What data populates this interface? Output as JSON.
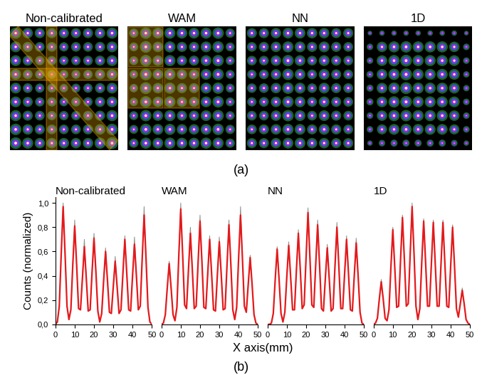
{
  "panel_labels": [
    "(a)",
    "(b)"
  ],
  "xlabel": "X axis(mm)",
  "ylabel": "Counts (normalized)",
  "images": [
    {
      "title": "Non-calibrated",
      "spots": [
        [
          0.85,
          0.75,
          0.7,
          0.7,
          0.7,
          0.7,
          0.7,
          0.75,
          0.85
        ],
        [
          0.8,
          0.7,
          0.65,
          0.65,
          0.6,
          0.65,
          0.65,
          0.7,
          0.8
        ],
        [
          0.8,
          0.7,
          0.6,
          0.6,
          0.6,
          0.6,
          0.65,
          0.7,
          0.8
        ],
        [
          0.8,
          0.65,
          0.6,
          0.55,
          0.55,
          0.55,
          0.6,
          0.7,
          0.8
        ],
        [
          0.8,
          0.65,
          0.6,
          0.55,
          0.5,
          0.55,
          0.6,
          0.7,
          0.8
        ],
        [
          0.8,
          0.7,
          0.6,
          0.6,
          0.55,
          0.6,
          0.6,
          0.7,
          0.8
        ],
        [
          0.85,
          0.7,
          0.65,
          0.6,
          0.6,
          0.6,
          0.65,
          0.7,
          0.85
        ],
        [
          0.9,
          0.75,
          0.7,
          0.65,
          0.65,
          0.65,
          0.7,
          0.75,
          0.9
        ],
        [
          0.95,
          0.85,
          0.75,
          0.75,
          0.75,
          0.75,
          0.75,
          0.85,
          0.95
        ]
      ]
    },
    {
      "title": "WAM",
      "spots": [
        [
          0.6,
          0.9,
          0.8,
          0.85,
          0.8,
          0.8,
          0.85,
          0.9,
          0.6
        ],
        [
          0.55,
          0.95,
          0.75,
          0.85,
          0.7,
          0.7,
          0.8,
          0.9,
          0.55
        ],
        [
          0.55,
          0.9,
          0.75,
          0.85,
          0.7,
          0.7,
          0.8,
          0.9,
          0.55
        ],
        [
          0.5,
          0.95,
          0.75,
          0.85,
          0.7,
          0.7,
          0.8,
          0.9,
          0.55
        ],
        [
          0.5,
          0.95,
          0.75,
          0.85,
          0.7,
          0.68,
          0.82,
          0.9,
          0.55
        ],
        [
          0.5,
          0.9,
          0.75,
          0.85,
          0.7,
          0.7,
          0.8,
          0.9,
          0.55
        ],
        [
          0.55,
          0.9,
          0.75,
          0.85,
          0.7,
          0.7,
          0.8,
          0.9,
          0.55
        ],
        [
          0.55,
          0.9,
          0.8,
          0.85,
          0.75,
          0.75,
          0.8,
          0.9,
          0.6
        ],
        [
          0.6,
          0.85,
          0.8,
          0.85,
          0.8,
          0.8,
          0.85,
          0.85,
          0.6
        ]
      ]
    },
    {
      "title": "NN",
      "spots": [
        [
          0.7,
          0.7,
          0.75,
          0.8,
          0.8,
          0.75,
          0.75,
          0.7,
          0.7
        ],
        [
          0.65,
          0.7,
          0.75,
          0.85,
          0.8,
          0.7,
          0.8,
          0.7,
          0.65
        ],
        [
          0.65,
          0.65,
          0.75,
          0.9,
          0.8,
          0.65,
          0.8,
          0.7,
          0.65
        ],
        [
          0.6,
          0.65,
          0.75,
          0.9,
          0.8,
          0.65,
          0.8,
          0.7,
          0.65
        ],
        [
          0.62,
          0.65,
          0.75,
          0.92,
          0.82,
          0.63,
          0.8,
          0.7,
          0.67
        ],
        [
          0.6,
          0.65,
          0.75,
          0.9,
          0.8,
          0.65,
          0.8,
          0.7,
          0.65
        ],
        [
          0.65,
          0.65,
          0.75,
          0.9,
          0.8,
          0.65,
          0.8,
          0.7,
          0.65
        ],
        [
          0.65,
          0.7,
          0.75,
          0.85,
          0.8,
          0.7,
          0.8,
          0.7,
          0.65
        ],
        [
          0.7,
          0.7,
          0.75,
          0.8,
          0.8,
          0.75,
          0.75,
          0.7,
          0.7
        ]
      ]
    },
    {
      "title": "1D",
      "spots": [
        [
          0.15,
          0.2,
          0.2,
          0.2,
          0.2,
          0.2,
          0.2,
          0.2,
          0.15
        ],
        [
          0.3,
          0.75,
          0.85,
          0.9,
          0.85,
          0.85,
          0.85,
          0.75,
          0.3
        ],
        [
          0.3,
          0.78,
          0.88,
          0.95,
          0.85,
          0.84,
          0.84,
          0.8,
          0.3
        ],
        [
          0.35,
          0.78,
          0.88,
          0.97,
          0.85,
          0.84,
          0.84,
          0.8,
          0.28
        ],
        [
          0.35,
          0.78,
          0.88,
          0.97,
          0.85,
          0.84,
          0.84,
          0.8,
          0.28
        ],
        [
          0.35,
          0.78,
          0.88,
          0.95,
          0.85,
          0.84,
          0.84,
          0.8,
          0.3
        ],
        [
          0.3,
          0.75,
          0.85,
          0.9,
          0.85,
          0.85,
          0.85,
          0.75,
          0.3
        ],
        [
          0.3,
          0.7,
          0.8,
          0.85,
          0.8,
          0.8,
          0.8,
          0.7,
          0.3
        ],
        [
          0.2,
          0.3,
          0.35,
          0.35,
          0.35,
          0.35,
          0.35,
          0.3,
          0.2
        ]
      ]
    }
  ],
  "chart_data": [
    {
      "type": "line",
      "title": "Non-calibrated",
      "tick_labels": true,
      "x": [
        0,
        1,
        2,
        3,
        4,
        5,
        6,
        7,
        8,
        9,
        10,
        11,
        12,
        13,
        14,
        15,
        16,
        17,
        18,
        19,
        20,
        21,
        22,
        23,
        24,
        25,
        26,
        27,
        28,
        29,
        30,
        31,
        32,
        33,
        34,
        35,
        36,
        37,
        38,
        39,
        40,
        41,
        42,
        43,
        44,
        45,
        46,
        47,
        48,
        49,
        50
      ],
      "xlim": [
        0,
        50
      ],
      "xticks": [
        0,
        10,
        20,
        30,
        40,
        50
      ],
      "ylim": [
        0,
        1.05
      ],
      "yticks": [
        {
          "value": 0.0,
          "label": "0,0"
        },
        {
          "value": 0.2,
          "label": "0,2"
        },
        {
          "value": 0.4,
          "label": "0,4"
        },
        {
          "value": 0.6,
          "label": "0,6"
        },
        {
          "value": 0.8,
          "label": "0,8"
        },
        {
          "value": 1.0,
          "label": "1,0"
        }
      ],
      "series": [
        {
          "color": "#8c8c8c",
          "values": [
            0,
            0.02,
            0.15,
            0.58,
            1.0,
            0.58,
            0.15,
            0.04,
            0.12,
            0.49,
            0.86,
            0.49,
            0.13,
            0.12,
            0.38,
            0.7,
            0.38,
            0.11,
            0.12,
            0.43,
            0.75,
            0.43,
            0.11,
            0.02,
            0.09,
            0.36,
            0.63,
            0.36,
            0.1,
            0.09,
            0.31,
            0.56,
            0.31,
            0.09,
            0.12,
            0.42,
            0.73,
            0.42,
            0.12,
            0.11,
            0.4,
            0.72,
            0.4,
            0.12,
            0.15,
            0.54,
            0.97,
            0.54,
            0.14,
            0.02,
            0
          ]
        },
        {
          "color": "#e41a1c",
          "values": [
            0,
            0.02,
            0.15,
            0.58,
            0.97,
            0.58,
            0.15,
            0.04,
            0.12,
            0.49,
            0.81,
            0.49,
            0.13,
            0.12,
            0.38,
            0.64,
            0.38,
            0.11,
            0.12,
            0.43,
            0.71,
            0.43,
            0.11,
            0.02,
            0.09,
            0.36,
            0.6,
            0.36,
            0.1,
            0.09,
            0.31,
            0.52,
            0.31,
            0.09,
            0.12,
            0.42,
            0.7,
            0.42,
            0.12,
            0.11,
            0.4,
            0.66,
            0.4,
            0.12,
            0.15,
            0.54,
            0.9,
            0.54,
            0.14,
            0.02,
            0
          ]
        }
      ]
    },
    {
      "type": "line",
      "title": "WAM",
      "tick_labels": "x",
      "x": [
        0,
        1,
        2,
        3,
        4,
        5,
        6,
        7,
        8,
        9,
        10,
        11,
        12,
        13,
        14,
        15,
        16,
        17,
        18,
        19,
        20,
        21,
        22,
        23,
        24,
        25,
        26,
        27,
        28,
        29,
        30,
        31,
        32,
        33,
        34,
        35,
        36,
        37,
        38,
        39,
        40,
        41,
        42,
        43,
        44,
        45,
        46,
        47,
        48,
        49,
        50
      ],
      "xlim": [
        0,
        50
      ],
      "xticks": [
        0,
        10,
        20,
        30,
        40,
        50
      ],
      "ylim": [
        0,
        1.05
      ],
      "series": [
        {
          "color": "#8c8c8c",
          "values": [
            0,
            0.01,
            0.08,
            0.3,
            0.52,
            0.3,
            0.08,
            0.03,
            0.14,
            0.57,
            1.0,
            0.57,
            0.16,
            0.13,
            0.45,
            0.8,
            0.45,
            0.13,
            0.15,
            0.51,
            0.9,
            0.51,
            0.14,
            0.13,
            0.42,
            0.73,
            0.42,
            0.12,
            0.11,
            0.41,
            0.72,
            0.41,
            0.12,
            0.13,
            0.49,
            0.86,
            0.49,
            0.12,
            0.04,
            0.14,
            0.54,
            0.97,
            0.54,
            0.15,
            0.1,
            0.33,
            0.57,
            0.33,
            0.08,
            0.01,
            0
          ]
        },
        {
          "color": "#e41a1c",
          "values": [
            0,
            0.01,
            0.08,
            0.3,
            0.5,
            0.3,
            0.08,
            0.03,
            0.14,
            0.57,
            0.95,
            0.57,
            0.16,
            0.13,
            0.45,
            0.75,
            0.45,
            0.13,
            0.15,
            0.51,
            0.85,
            0.51,
            0.14,
            0.13,
            0.42,
            0.7,
            0.42,
            0.12,
            0.11,
            0.41,
            0.68,
            0.41,
            0.12,
            0.13,
            0.49,
            0.82,
            0.49,
            0.12,
            0.04,
            0.14,
            0.54,
            0.9,
            0.54,
            0.15,
            0.1,
            0.33,
            0.55,
            0.33,
            0.08,
            0.01,
            0
          ]
        }
      ]
    },
    {
      "type": "line",
      "title": "NN",
      "tick_labels": "x",
      "x": [
        0,
        1,
        2,
        3,
        4,
        5,
        6,
        7,
        8,
        9,
        10,
        11,
        12,
        13,
        14,
        15,
        16,
        17,
        18,
        19,
        20,
        21,
        22,
        23,
        24,
        25,
        26,
        27,
        28,
        29,
        30,
        31,
        32,
        33,
        34,
        35,
        36,
        37,
        38,
        39,
        40,
        41,
        42,
        43,
        44,
        45,
        46,
        47,
        48,
        49,
        50
      ],
      "xlim": [
        0,
        50
      ],
      "xticks": [
        0,
        10,
        20,
        30,
        40,
        50
      ],
      "ylim": [
        0,
        1.05
      ],
      "series": [
        {
          "color": "#8c8c8c",
          "values": [
            0,
            0,
            0.01,
            0.09,
            0.37,
            0.64,
            0.37,
            0.09,
            0.02,
            0.1,
            0.39,
            0.68,
            0.39,
            0.12,
            0.12,
            0.45,
            0.78,
            0.45,
            0.13,
            0.16,
            0.55,
            0.96,
            0.55,
            0.16,
            0.14,
            0.49,
            0.86,
            0.49,
            0.13,
            0.11,
            0.38,
            0.66,
            0.38,
            0.11,
            0.13,
            0.48,
            0.84,
            0.48,
            0.13,
            0.13,
            0.42,
            0.73,
            0.42,
            0.12,
            0.11,
            0.4,
            0.71,
            0.4,
            0.1,
            0.01,
            0
          ]
        },
        {
          "color": "#e41a1c",
          "values": [
            0,
            0,
            0.01,
            0.09,
            0.37,
            0.62,
            0.37,
            0.09,
            0.02,
            0.1,
            0.39,
            0.65,
            0.39,
            0.12,
            0.12,
            0.45,
            0.75,
            0.45,
            0.13,
            0.16,
            0.55,
            0.92,
            0.55,
            0.16,
            0.14,
            0.49,
            0.82,
            0.49,
            0.13,
            0.11,
            0.38,
            0.63,
            0.38,
            0.11,
            0.13,
            0.48,
            0.8,
            0.48,
            0.13,
            0.13,
            0.42,
            0.7,
            0.42,
            0.12,
            0.11,
            0.4,
            0.67,
            0.4,
            0.1,
            0.01,
            0
          ]
        }
      ]
    },
    {
      "type": "line",
      "title": "1D",
      "tick_labels": "x",
      "x": [
        0,
        1,
        2,
        3,
        4,
        5,
        6,
        7,
        8,
        9,
        10,
        11,
        12,
        13,
        14,
        15,
        16,
        17,
        18,
        19,
        20,
        21,
        22,
        23,
        24,
        25,
        26,
        27,
        28,
        29,
        30,
        31,
        32,
        33,
        34,
        35,
        36,
        37,
        38,
        39,
        40,
        41,
        42,
        43,
        44,
        45,
        46,
        47,
        48,
        49,
        50
      ],
      "xlim": [
        0,
        50
      ],
      "xticks": [
        0,
        10,
        20,
        30,
        40,
        50
      ],
      "ylim": [
        0,
        1.05
      ],
      "series": [
        {
          "color": "#8c8c8c",
          "values": [
            0,
            0.01,
            0.05,
            0.21,
            0.37,
            0.21,
            0.05,
            0.03,
            0.12,
            0.47,
            0.8,
            0.47,
            0.14,
            0.15,
            0.53,
            0.9,
            0.53,
            0.15,
            0.17,
            0.58,
            1.0,
            0.58,
            0.15,
            0.04,
            0.13,
            0.51,
            0.87,
            0.51,
            0.15,
            0.15,
            0.5,
            0.86,
            0.5,
            0.15,
            0.15,
            0.5,
            0.86,
            0.5,
            0.15,
            0.14,
            0.48,
            0.82,
            0.48,
            0.13,
            0.06,
            0.17,
            0.3,
            0.17,
            0.04,
            0.01,
            0
          ]
        },
        {
          "color": "#e41a1c",
          "values": [
            0,
            0.01,
            0.05,
            0.21,
            0.35,
            0.21,
            0.05,
            0.03,
            0.12,
            0.47,
            0.78,
            0.47,
            0.14,
            0.15,
            0.53,
            0.88,
            0.53,
            0.15,
            0.17,
            0.58,
            0.97,
            0.58,
            0.15,
            0.04,
            0.13,
            0.51,
            0.85,
            0.51,
            0.15,
            0.15,
            0.5,
            0.84,
            0.5,
            0.15,
            0.15,
            0.5,
            0.84,
            0.5,
            0.15,
            0.14,
            0.48,
            0.8,
            0.48,
            0.13,
            0.06,
            0.17,
            0.28,
            0.17,
            0.04,
            0.01,
            0
          ]
        }
      ]
    }
  ]
}
